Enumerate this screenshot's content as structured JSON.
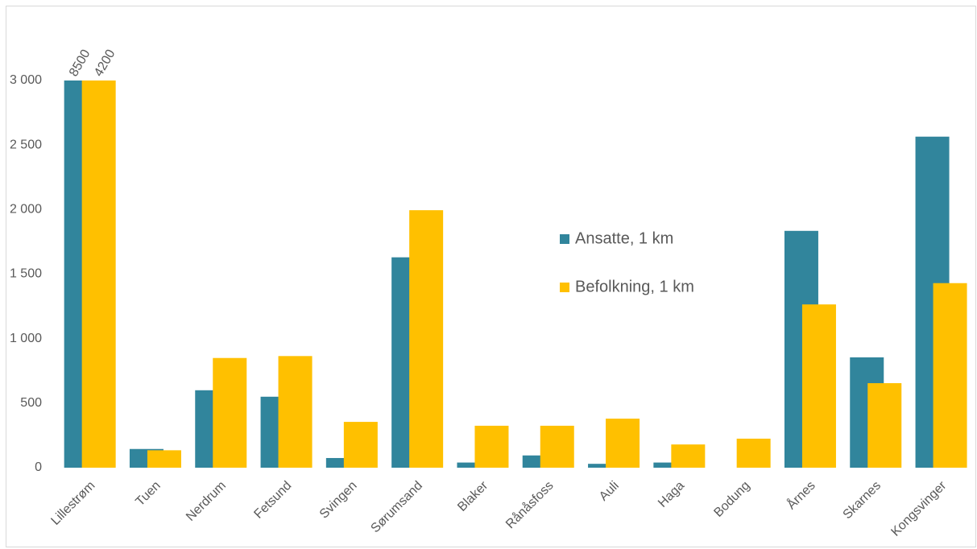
{
  "chart_data": {
    "type": "bar",
    "categories": [
      "Lillestrøm",
      "Tuen",
      "Nerdrum",
      "Fetsund",
      "Svingen",
      "Sørumsand",
      "Blaker",
      "Rånåsfoss",
      "Auli",
      "Haga",
      "Bodung",
      "Årnes",
      "Skarnes",
      "Kongsvinger"
    ],
    "series": [
      {
        "name": "Ansatte, 1 km",
        "color": "#31859c",
        "values": [
          8500,
          145,
          600,
          550,
          75,
          1630,
          40,
          95,
          30,
          40,
          0,
          1835,
          855,
          2565
        ],
        "value_labels": [
          "8500",
          null,
          null,
          null,
          null,
          null,
          null,
          null,
          null,
          null,
          null,
          null,
          null,
          null
        ]
      },
      {
        "name": "Befolkning, 1 km",
        "color": "#ffc000",
        "values": [
          4200,
          135,
          850,
          865,
          355,
          1995,
          325,
          325,
          380,
          180,
          225,
          1265,
          655,
          1430
        ],
        "value_labels": [
          "4200",
          null,
          null,
          null,
          null,
          null,
          null,
          null,
          null,
          null,
          null,
          null,
          null,
          null
        ]
      }
    ],
    "ylim": [
      0,
      3000
    ],
    "yticks": [
      0,
      500,
      {
        "value": 1000,
        "label": "1 000"
      },
      {
        "value": 1500,
        "label": "1 500"
      },
      {
        "value": 2000,
        "label": "2 000"
      },
      {
        "value": 2500,
        "label": "2 500"
      },
      {
        "value": 3000,
        "label": "3 000"
      }
    ],
    "grid": false,
    "legend": "center"
  }
}
